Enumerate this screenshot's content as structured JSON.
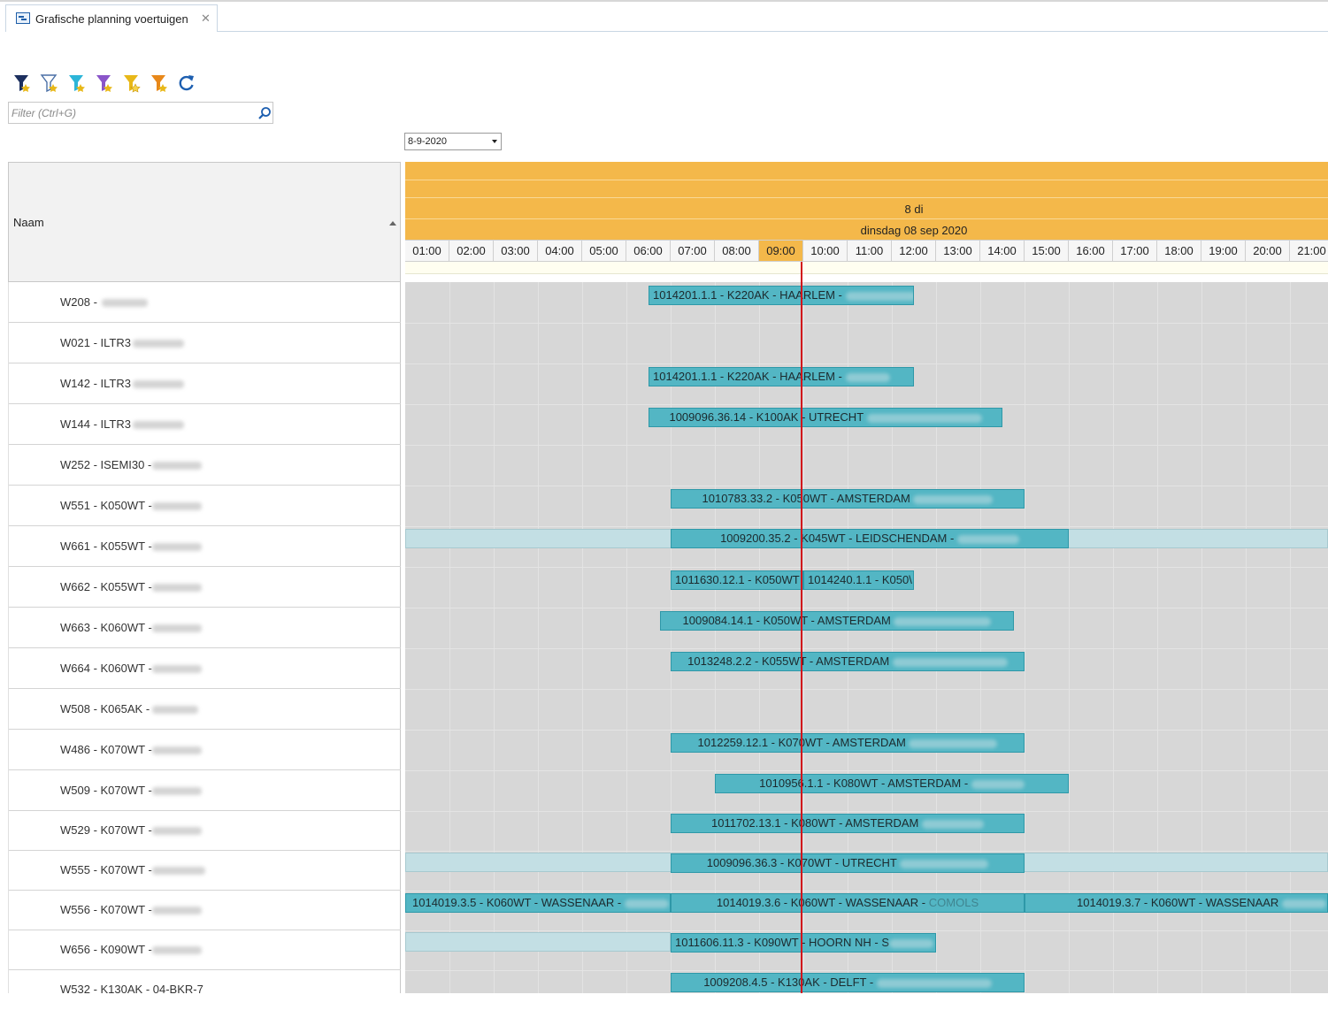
{
  "tab": {
    "title": "Grafische planning voertuigen",
    "close": "✕"
  },
  "toolbar": {
    "buttons": [
      {
        "name": "filter-dark-blue-icon",
        "color": "#1c2f5e"
      },
      {
        "name": "filter-outline-icon",
        "color": "#4a6fa5"
      },
      {
        "name": "filter-cyan-icon",
        "color": "#2cb5d8"
      },
      {
        "name": "filter-purple-icon",
        "color": "#8a55c9"
      },
      {
        "name": "filter-yellow-icon",
        "color": "#e8b818"
      },
      {
        "name": "filter-orange-icon",
        "color": "#e8881a"
      }
    ],
    "refresh_color": "#1d5fb0"
  },
  "filter": {
    "placeholder": "Filter (Ctrl+G)"
  },
  "date": {
    "value": "8-9-2020"
  },
  "left_header": {
    "naam": "Naam"
  },
  "timeline": {
    "day_short": "8 di",
    "day_long": "dinsdag 08 sep 2020",
    "hours": [
      "01:00",
      "02:00",
      "03:00",
      "04:00",
      "05:00",
      "06:00",
      "07:00",
      "08:00",
      "09:00",
      "10:00",
      "11:00",
      "12:00",
      "13:00",
      "14:00",
      "15:00",
      "16:00",
      "17:00",
      "18:00",
      "19:00",
      "20:00",
      "21:00"
    ],
    "current_hour": "09:00",
    "header_color": "#f4b84a",
    "bar_color": "#53b6c4"
  },
  "rows": [
    {
      "label": "W208 -"
    },
    {
      "label": "W021 - ILTR3"
    },
    {
      "label": "W142 - ILTR3"
    },
    {
      "label": "W144 - ILTR3"
    },
    {
      "label": "W252 - ISEMI30 -"
    },
    {
      "label": "W551 - K050WT -"
    },
    {
      "label": "W661 - K055WT -"
    },
    {
      "label": "W662 - K055WT -"
    },
    {
      "label": "W663 - K060WT -"
    },
    {
      "label": "W664 - K060WT -"
    },
    {
      "label": "W508 - K065AK -"
    },
    {
      "label": "W486 - K070WT -"
    },
    {
      "label": "W509 - K070WT -"
    },
    {
      "label": "W529 - K070WT -"
    },
    {
      "label": "W555 - K070WT -"
    },
    {
      "label": "W556 - K070WT -"
    },
    {
      "label": "W656 - K090WT -"
    },
    {
      "label": "W532 - K130AK - 04-BKR-7"
    }
  ],
  "bars": [
    {
      "text": "1014201.1.1 - K220AK - HAARLEM -",
      "row": 0
    },
    {
      "text": "1014201.1.1 - K220AK - HAARLEM -",
      "row": 2
    },
    {
      "text": "1009096.36.14 - K100AK - UTRECHT",
      "row": 3
    },
    {
      "text": "1010783.33.2 - K050WT - AMSTERDAM",
      "row": 5
    },
    {
      "text": "1009200.35.2 - K045WT - LEIDSCHENDAM -",
      "row": 6
    },
    {
      "text": "1011630.12.1 - K050WT",
      "row": 7
    },
    {
      "text": "1014240.1.1 - K050\\",
      "row": 7
    },
    {
      "text": "1009084.14.1 - K050WT - AMSTERDAM",
      "row": 8
    },
    {
      "text": "1013248.2.2 - K055WT - AMSTERDAM",
      "row": 9
    },
    {
      "text": "1012259.12.1 - K070WT - AMSTERDAM",
      "row": 11
    },
    {
      "text": "1010956.1.1 - K080WT - AMSTERDAM -",
      "row": 12
    },
    {
      "text": "1011702.13.1 - K080WT - AMSTERDAM",
      "row": 13
    },
    {
      "text": "1009096.36.3 - K070WT - UTRECHT",
      "row": 14
    },
    {
      "text": "1014019.3.5 - K060WT - WASSENAAR -",
      "row": 15
    },
    {
      "text": "1014019.3.6 - K060WT - WASSENAAR -",
      "row": 15,
      "suffix": "COMOLS"
    },
    {
      "text": "1014019.3.7 - K060WT - WASSENAAR",
      "row": 15
    },
    {
      "text": "1011606.11.3 - K090WT - HOORN NH - S",
      "row": 16
    },
    {
      "text": "1009208.4.5 - K130AK - DELFT -",
      "row": 17
    }
  ]
}
